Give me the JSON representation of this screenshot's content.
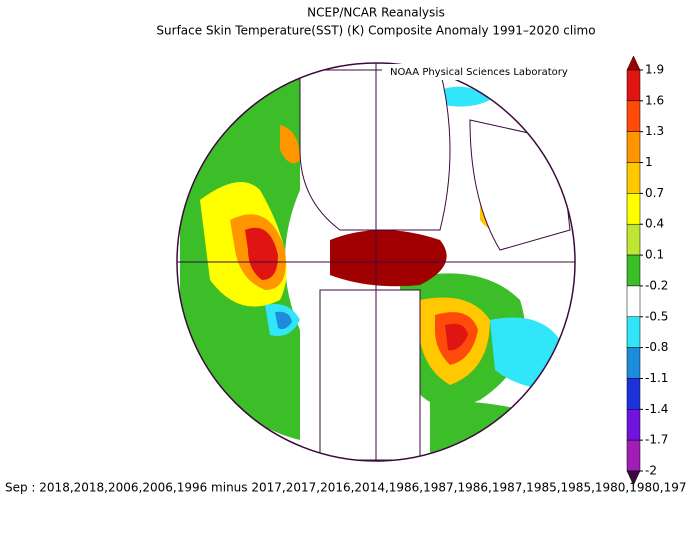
{
  "title": "NCEP/NCAR Reanalysis",
  "subtitle": "Surface Skin Temperature(SST) (K) Composite Anomaly 1991–2020 climo",
  "credit": "NOAA Physical Sciences Laboratory",
  "colorbar": {
    "ticks": [
      1.9,
      1.6,
      1.3,
      1,
      0.7,
      0.4,
      0.1,
      -0.2,
      -0.5,
      -0.8,
      -1.1,
      -1.4,
      -1.7,
      -2
    ],
    "colors": [
      "#a00000",
      "#e11414",
      "#ff4b0a",
      "#ff9600",
      "#ffc800",
      "#ffff00",
      "#bee632",
      "#3cbe28",
      "#ffffff",
      "#32e6fa",
      "#1e8cdc",
      "#1e32dc",
      "#6e14dc",
      "#a01eb4",
      "#780a78",
      "#3c0a3c"
    ]
  },
  "footer": "Sep : 2018,2018,2006,2006,1996 minus 2017,2017,2016,2014,1986,1987,1986,1987,1985,1985,1980,1980,197"
}
